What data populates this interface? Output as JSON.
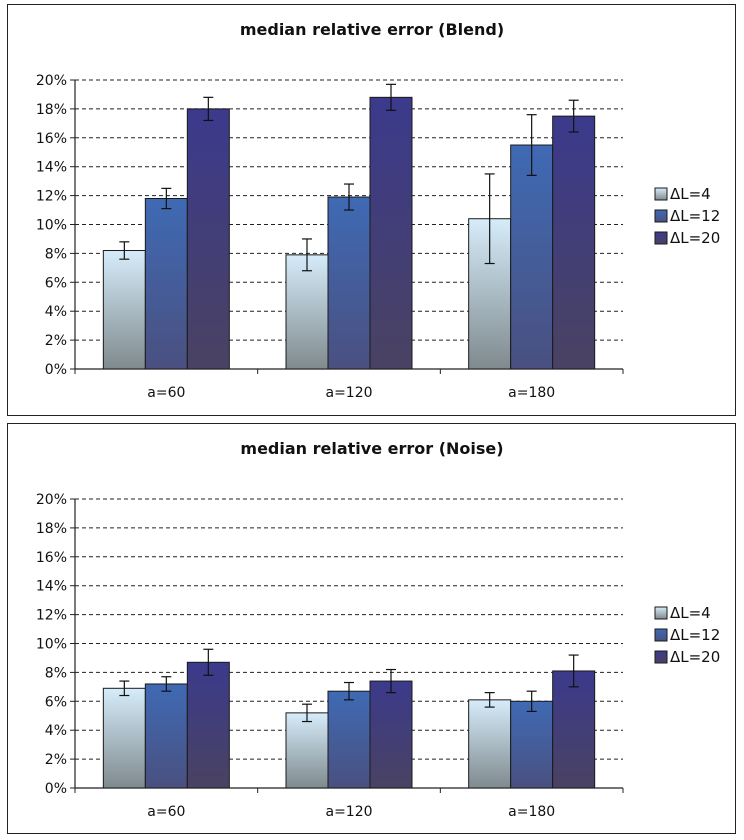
{
  "chart_data": [
    {
      "type": "bar",
      "title": "median relative error (Blend)",
      "categories": [
        "a=60",
        "a=120",
        "a=180"
      ],
      "yticks": [
        "0%",
        "2%",
        "4%",
        "6%",
        "8%",
        "10%",
        "12%",
        "14%",
        "16%",
        "18%",
        "20%"
      ],
      "ylim": [
        0,
        20
      ],
      "grid": true,
      "legend_position": "right",
      "series": [
        {
          "name": "ΔL=4",
          "values": [
            8.2,
            7.9,
            10.4
          ],
          "error": [
            0.6,
            1.1,
            3.1
          ],
          "gradient": [
            "#d6ecfa",
            "#7f8a8e"
          ]
        },
        {
          "name": "ΔL=12",
          "values": [
            11.8,
            11.9,
            15.5
          ],
          "error": [
            0.7,
            0.9,
            2.1
          ],
          "gradient": [
            "#3f6ab4",
            "#4a5080"
          ]
        },
        {
          "name": "ΔL=20",
          "values": [
            18.0,
            18.8,
            17.5
          ],
          "error": [
            0.8,
            0.9,
            1.1
          ],
          "gradient": [
            "#3b3a8c",
            "#4a4262"
          ]
        }
      ]
    },
    {
      "type": "bar",
      "title": "median relative error (Noise)",
      "categories": [
        "a=60",
        "a=120",
        "a=180"
      ],
      "yticks": [
        "0%",
        "2%",
        "4%",
        "6%",
        "8%",
        "10%",
        "12%",
        "14%",
        "16%",
        "18%",
        "20%"
      ],
      "ylim": [
        0,
        20
      ],
      "grid": true,
      "legend_position": "right",
      "series": [
        {
          "name": "ΔL=4",
          "values": [
            6.9,
            5.2,
            6.1
          ],
          "error": [
            0.5,
            0.6,
            0.5
          ],
          "gradient": [
            "#d6ecfa",
            "#7f8a8e"
          ]
        },
        {
          "name": "ΔL=12",
          "values": [
            7.2,
            6.7,
            6.0
          ],
          "error": [
            0.5,
            0.6,
            0.7
          ],
          "gradient": [
            "#3f6ab4",
            "#4a5080"
          ]
        },
        {
          "name": "ΔL=20",
          "values": [
            8.7,
            7.4,
            8.1
          ],
          "error": [
            0.9,
            0.8,
            1.1
          ],
          "gradient": [
            "#3b3a8c",
            "#4a4262"
          ]
        }
      ]
    }
  ]
}
